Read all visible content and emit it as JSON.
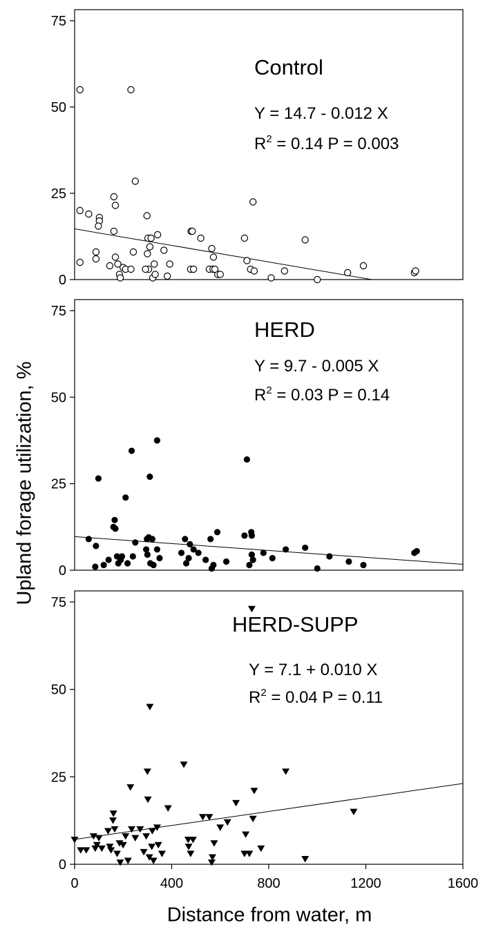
{
  "ylabel": "Upland forage utilization, %",
  "xlabel": "Distance from water, m",
  "chart_data": [
    {
      "type": "scatter",
      "title": "Control",
      "marker": "open-circle",
      "equation": "Y = 14.7 - 0.012 X",
      "r2_label": "R",
      "r2_sup": "2",
      "stats": " = 0.14  P = 0.003",
      "regression": {
        "intercept": 14.7,
        "slope": -0.012
      },
      "xlim": [
        0,
        1600
      ],
      "ylim": [
        0,
        75
      ],
      "x_ticks": [],
      "y_ticks": [
        0,
        25,
        50,
        75
      ],
      "points": [
        [
          22,
          55
        ],
        [
          232,
          55
        ],
        [
          22,
          20
        ],
        [
          58,
          19
        ],
        [
          22,
          5
        ],
        [
          88,
          8
        ],
        [
          88,
          6
        ],
        [
          102,
          18
        ],
        [
          102,
          17
        ],
        [
          98,
          15.5
        ],
        [
          145,
          4
        ],
        [
          162,
          24
        ],
        [
          162,
          14
        ],
        [
          168,
          21.5
        ],
        [
          168,
          6.5
        ],
        [
          178,
          4.5
        ],
        [
          185,
          1.5
        ],
        [
          188,
          0.5
        ],
        [
          200,
          3.5
        ],
        [
          210,
          3
        ],
        [
          232,
          3
        ],
        [
          242,
          8
        ],
        [
          250,
          28.5
        ],
        [
          298,
          18.5
        ],
        [
          302,
          12
        ],
        [
          300,
          7.5
        ],
        [
          305,
          3
        ],
        [
          310,
          9.5
        ],
        [
          315,
          12
        ],
        [
          322,
          0.5
        ],
        [
          328,
          4.5
        ],
        [
          332,
          1.5
        ],
        [
          342,
          13
        ],
        [
          368,
          8.5
        ],
        [
          382,
          1
        ],
        [
          392,
          4.5
        ],
        [
          292,
          3
        ],
        [
          480,
          14
        ],
        [
          485,
          14
        ],
        [
          478,
          3
        ],
        [
          490,
          3
        ],
        [
          520,
          12
        ],
        [
          555,
          3
        ],
        [
          565,
          9
        ],
        [
          570,
          3
        ],
        [
          572,
          6.5
        ],
        [
          590,
          1.5
        ],
        [
          578,
          3
        ],
        [
          600,
          1.5
        ],
        [
          700,
          12
        ],
        [
          710,
          5.5
        ],
        [
          725,
          3
        ],
        [
          735,
          22.5
        ],
        [
          740,
          2.5
        ],
        [
          810,
          0.5
        ],
        [
          865,
          2.5
        ],
        [
          950,
          11.5
        ],
        [
          1000,
          0
        ],
        [
          1125,
          2
        ],
        [
          1190,
          4
        ],
        [
          1400,
          2
        ],
        [
          1405,
          2.5
        ]
      ]
    },
    {
      "type": "scatter",
      "title": "HERD",
      "marker": "filled-circle",
      "equation": "Y = 9.7 - 0.005 X",
      "r2_label": "R",
      "r2_sup": "2",
      "stats": " = 0.03  P = 0.14",
      "regression": {
        "intercept": 9.7,
        "slope": -0.005
      },
      "xlim": [
        0,
        1600
      ],
      "ylim": [
        0,
        75
      ],
      "x_ticks": [],
      "y_ticks": [
        0,
        25,
        50,
        75
      ],
      "points": [
        [
          58,
          9
        ],
        [
          88,
          7
        ],
        [
          98,
          26.5
        ],
        [
          85,
          1
        ],
        [
          120,
          1.5
        ],
        [
          140,
          3
        ],
        [
          160,
          12.5
        ],
        [
          165,
          14.5
        ],
        [
          168,
          12
        ],
        [
          175,
          4
        ],
        [
          180,
          2
        ],
        [
          190,
          3
        ],
        [
          195,
          4
        ],
        [
          210,
          21
        ],
        [
          218,
          2
        ],
        [
          235,
          34.5
        ],
        [
          240,
          4
        ],
        [
          250,
          8
        ],
        [
          295,
          6
        ],
        [
          298,
          9
        ],
        [
          300,
          4.5
        ],
        [
          305,
          9.5
        ],
        [
          310,
          27
        ],
        [
          312,
          2
        ],
        [
          320,
          9
        ],
        [
          325,
          1.5
        ],
        [
          340,
          37.5
        ],
        [
          340,
          6
        ],
        [
          350,
          3.5
        ],
        [
          440,
          5
        ],
        [
          455,
          9
        ],
        [
          460,
          2
        ],
        [
          470,
          3.5
        ],
        [
          475,
          7.5
        ],
        [
          490,
          6
        ],
        [
          510,
          5
        ],
        [
          540,
          3
        ],
        [
          560,
          9
        ],
        [
          565,
          0.5
        ],
        [
          572,
          1.5
        ],
        [
          588,
          11
        ],
        [
          625,
          2.5
        ],
        [
          700,
          10
        ],
        [
          710,
          32
        ],
        [
          720,
          1.5
        ],
        [
          728,
          11
        ],
        [
          730,
          10
        ],
        [
          730,
          4.5
        ],
        [
          735,
          3
        ],
        [
          778,
          5
        ],
        [
          815,
          3.5
        ],
        [
          870,
          6
        ],
        [
          950,
          6.5
        ],
        [
          1000,
          0.5
        ],
        [
          1050,
          4
        ],
        [
          1130,
          2.5
        ],
        [
          1190,
          1.5
        ],
        [
          1400,
          5
        ],
        [
          1410,
          5.5
        ]
      ]
    },
    {
      "type": "scatter",
      "title": "HERD-SUPP",
      "marker": "filled-down-triangle",
      "equation": "Y = 7.1 + 0.010 X",
      "r2_label": "R",
      "r2_sup": "2",
      "stats": " = 0.04  P = 0.11",
      "regression": {
        "intercept": 7.1,
        "slope": 0.01
      },
      "xlim": [
        0,
        1600
      ],
      "ylim": [
        0,
        75
      ],
      "x_ticks": [
        0,
        400,
        800,
        1200,
        1600
      ],
      "y_ticks": [
        0,
        25,
        50,
        75
      ],
      "points": [
        [
          0,
          7
        ],
        [
          25,
          4
        ],
        [
          48,
          4
        ],
        [
          78,
          8
        ],
        [
          85,
          4.5
        ],
        [
          92,
          5.5
        ],
        [
          100,
          7.5
        ],
        [
          112,
          4.5
        ],
        [
          138,
          9.5
        ],
        [
          145,
          5
        ],
        [
          150,
          4
        ],
        [
          158,
          12.5
        ],
        [
          160,
          14.5
        ],
        [
          165,
          10
        ],
        [
          175,
          3
        ],
        [
          185,
          6
        ],
        [
          188,
          0.5
        ],
        [
          200,
          5.5
        ],
        [
          210,
          8
        ],
        [
          220,
          1
        ],
        [
          230,
          22
        ],
        [
          235,
          10
        ],
        [
          250,
          7.5
        ],
        [
          270,
          10
        ],
        [
          285,
          3.5
        ],
        [
          295,
          8
        ],
        [
          300,
          26.5
        ],
        [
          302,
          18.5
        ],
        [
          308,
          2
        ],
        [
          310,
          45
        ],
        [
          318,
          5
        ],
        [
          320,
          9.5
        ],
        [
          325,
          1
        ],
        [
          340,
          10.5
        ],
        [
          345,
          5.5
        ],
        [
          360,
          3
        ],
        [
          385,
          16
        ],
        [
          450,
          28.5
        ],
        [
          468,
          7
        ],
        [
          470,
          5
        ],
        [
          478,
          3
        ],
        [
          488,
          7
        ],
        [
          528,
          13.5
        ],
        [
          555,
          13.5
        ],
        [
          565,
          0.5
        ],
        [
          568,
          2
        ],
        [
          575,
          6
        ],
        [
          600,
          10.5
        ],
        [
          630,
          12
        ],
        [
          665,
          17.5
        ],
        [
          700,
          3
        ],
        [
          705,
          8.5
        ],
        [
          720,
          3
        ],
        [
          730,
          73
        ],
        [
          735,
          13
        ],
        [
          740,
          21
        ],
        [
          768,
          4.5
        ],
        [
          870,
          26.5
        ],
        [
          950,
          1.5
        ],
        [
          1150,
          15
        ]
      ]
    }
  ]
}
